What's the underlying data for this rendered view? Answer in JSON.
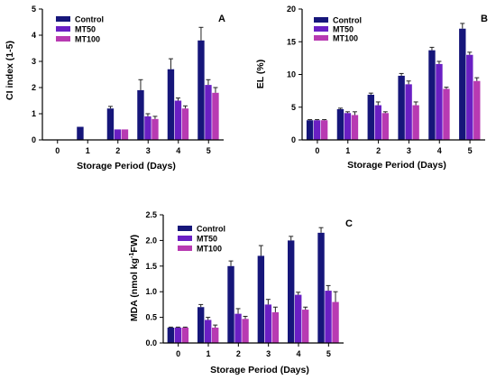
{
  "chart_data": [
    {
      "type": "bar",
      "panel_label": "A",
      "categories": [
        "0",
        "1",
        "2",
        "3",
        "4",
        "5"
      ],
      "xlabel": "Storage Period (Days)",
      "ylabel": "CI index (1-5)",
      "ylim": [
        0,
        5
      ],
      "yticks": [
        "0",
        "1",
        "2",
        "3",
        "4",
        "5"
      ],
      "legend_position": "top-left",
      "series": [
        {
          "name": "Control",
          "color": "#16167a",
          "values": [
            0,
            0.5,
            1.2,
            1.9,
            2.7,
            3.8
          ],
          "errors": [
            0,
            0,
            0.08,
            0.4,
            0.4,
            0.5
          ]
        },
        {
          "name": "MT50",
          "color": "#6a1fc4",
          "values": [
            0,
            0,
            0.4,
            0.9,
            1.5,
            2.1
          ],
          "errors": [
            0,
            0,
            0,
            0.1,
            0.1,
            0.2
          ]
        },
        {
          "name": "MT100",
          "color": "#b83ab2",
          "values": [
            0,
            0,
            0.4,
            0.8,
            1.2,
            1.8
          ],
          "errors": [
            0,
            0,
            0,
            0.1,
            0.1,
            0.2
          ]
        }
      ]
    },
    {
      "type": "bar",
      "panel_label": "B",
      "categories": [
        "0",
        "1",
        "2",
        "3",
        "4",
        "5"
      ],
      "xlabel": "Storage Period (Days)",
      "ylabel": "EL  (%)",
      "ylim": [
        0,
        20
      ],
      "yticks": [
        "0",
        "5",
        "10",
        "15",
        "20"
      ],
      "legend_position": "top-left",
      "series": [
        {
          "name": "Control",
          "color": "#16167a",
          "values": [
            3.0,
            4.7,
            6.9,
            9.8,
            13.7,
            17.0
          ],
          "errors": [
            0.1,
            0.15,
            0.25,
            0.35,
            0.45,
            0.8
          ]
        },
        {
          "name": "MT50",
          "color": "#6a1fc4",
          "values": [
            3.0,
            4.1,
            5.3,
            8.5,
            11.6,
            13.0
          ],
          "errors": [
            0.1,
            0.2,
            0.5,
            0.5,
            0.4,
            0.4
          ]
        },
        {
          "name": "MT100",
          "color": "#b83ab2",
          "values": [
            3.0,
            3.8,
            4.1,
            5.3,
            7.8,
            9.0
          ],
          "errors": [
            0.1,
            0.5,
            0.2,
            0.5,
            0.25,
            0.5
          ]
        }
      ]
    },
    {
      "type": "bar",
      "panel_label": "C",
      "categories": [
        "0",
        "1",
        "2",
        "3",
        "4",
        "5"
      ],
      "xlabel": "Storage Period (Days)",
      "ylabel_main": "MDA (nmol kg",
      "ylabel_sup": "-1",
      "ylabel_tail": "FW)",
      "ylim": [
        0,
        2.5
      ],
      "yticks": [
        "0.0",
        "0.5",
        "1.0",
        "1.5",
        "2.0",
        "2.5"
      ],
      "legend_position": "top-left",
      "series": [
        {
          "name": "Control",
          "color": "#16167a",
          "values": [
            0.3,
            0.7,
            1.5,
            1.7,
            2.0,
            2.15
          ],
          "errors": [
            0.01,
            0.05,
            0.1,
            0.2,
            0.08,
            0.1
          ]
        },
        {
          "name": "MT50",
          "color": "#6a1fc4",
          "values": [
            0.3,
            0.45,
            0.57,
            0.75,
            0.94,
            1.02
          ],
          "errors": [
            0.01,
            0.05,
            0.1,
            0.1,
            0.05,
            0.1
          ]
        },
        {
          "name": "MT100",
          "color": "#b83ab2",
          "values": [
            0.3,
            0.3,
            0.47,
            0.6,
            0.65,
            0.8
          ],
          "errors": [
            0.01,
            0.05,
            0.05,
            0.1,
            0.05,
            0.2
          ]
        }
      ]
    }
  ]
}
